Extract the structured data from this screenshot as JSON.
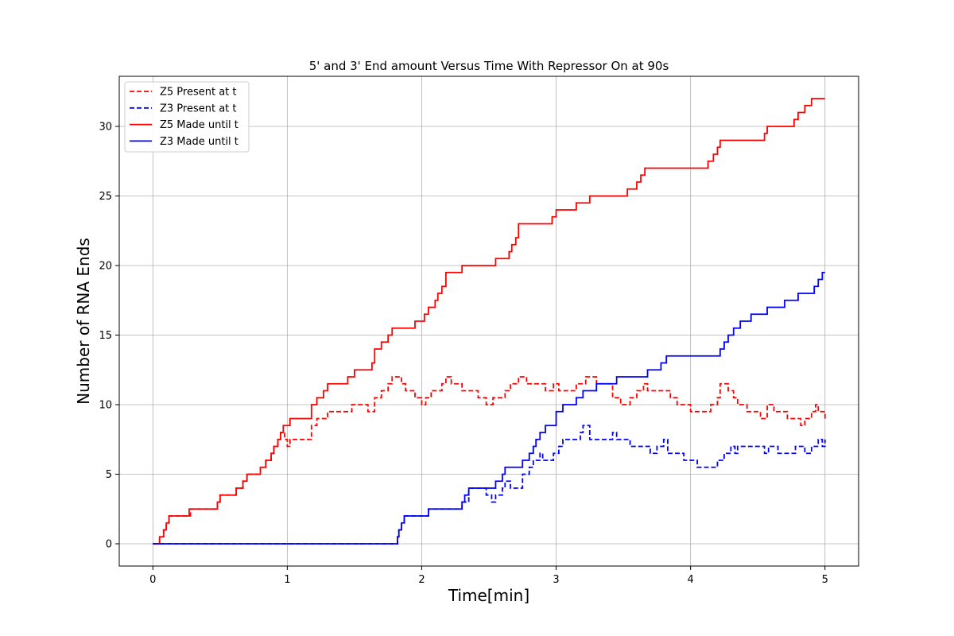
{
  "chart_data": {
    "type": "line",
    "title": "5' and 3' End amount Versus Time With Repressor On at 90s",
    "xlabel": "Time[min]",
    "ylabel": "Number of RNA Ends",
    "xlim": [
      -0.25,
      5.25
    ],
    "ylim": [
      -1.6,
      33.6
    ],
    "xticks": [
      0,
      1,
      2,
      3,
      4,
      5
    ],
    "yticks": [
      0,
      5,
      10,
      15,
      20,
      25,
      30
    ],
    "xtick_labels": [
      "0",
      "1",
      "2",
      "3",
      "4",
      "5"
    ],
    "ytick_labels": [
      "0",
      "5",
      "10",
      "15",
      "20",
      "25",
      "30"
    ],
    "grid": true,
    "legend_position": "top-left",
    "step": "post",
    "series": [
      {
        "name": "Z5 Present at t",
        "color": "#ff0000",
        "style": "dashed",
        "points": [
          [
            0,
            0
          ],
          [
            0.05,
            0.5
          ],
          [
            0.08,
            1
          ],
          [
            0.1,
            1.5
          ],
          [
            0.12,
            2
          ],
          [
            0.28,
            2.5
          ],
          [
            0.48,
            3
          ],
          [
            0.5,
            3.5
          ],
          [
            0.62,
            4
          ],
          [
            0.67,
            4.5
          ],
          [
            0.7,
            5
          ],
          [
            0.8,
            5.5
          ],
          [
            0.84,
            6
          ],
          [
            0.88,
            6.5
          ],
          [
            0.9,
            7
          ],
          [
            0.93,
            7.5
          ],
          [
            0.95,
            8
          ],
          [
            0.98,
            7.5
          ],
          [
            1.0,
            7
          ],
          [
            1.02,
            7.5
          ],
          [
            1.18,
            8.5
          ],
          [
            1.22,
            9
          ],
          [
            1.3,
            9.5
          ],
          [
            1.48,
            10
          ],
          [
            1.6,
            9.5
          ],
          [
            1.65,
            10.5
          ],
          [
            1.7,
            11
          ],
          [
            1.75,
            11.5
          ],
          [
            1.78,
            12
          ],
          [
            1.85,
            11.5
          ],
          [
            1.88,
            11
          ],
          [
            1.95,
            10.5
          ],
          [
            2.0,
            10
          ],
          [
            2.03,
            10.5
          ],
          [
            2.07,
            11
          ],
          [
            2.15,
            11.5
          ],
          [
            2.18,
            12
          ],
          [
            2.22,
            11.5
          ],
          [
            2.3,
            11
          ],
          [
            2.42,
            10.5
          ],
          [
            2.48,
            10
          ],
          [
            2.53,
            10.5
          ],
          [
            2.62,
            11
          ],
          [
            2.66,
            11.5
          ],
          [
            2.72,
            12
          ],
          [
            2.78,
            11.5
          ],
          [
            2.92,
            11
          ],
          [
            2.98,
            11.5
          ],
          [
            3.02,
            11
          ],
          [
            3.15,
            11.5
          ],
          [
            3.22,
            12
          ],
          [
            3.3,
            11.5
          ],
          [
            3.42,
            10.5
          ],
          [
            3.48,
            10
          ],
          [
            3.55,
            10.5
          ],
          [
            3.6,
            11
          ],
          [
            3.65,
            11.5
          ],
          [
            3.68,
            11
          ],
          [
            3.85,
            10.5
          ],
          [
            3.9,
            10
          ],
          [
            4.0,
            9.5
          ],
          [
            4.15,
            10
          ],
          [
            4.2,
            10.5
          ],
          [
            4.22,
            11.5
          ],
          [
            4.28,
            11
          ],
          [
            4.32,
            10.5
          ],
          [
            4.35,
            10
          ],
          [
            4.42,
            9.5
          ],
          [
            4.52,
            9
          ],
          [
            4.57,
            10
          ],
          [
            4.62,
            9.5
          ],
          [
            4.72,
            9
          ],
          [
            4.82,
            8.5
          ],
          [
            4.85,
            9
          ],
          [
            4.9,
            9.5
          ],
          [
            4.93,
            10
          ],
          [
            4.95,
            9.5
          ],
          [
            5.0,
            9
          ]
        ]
      },
      {
        "name": "Z3 Present at t",
        "color": "#0000ff",
        "style": "dashed",
        "points": [
          [
            0,
            0
          ],
          [
            1.82,
            0.5
          ],
          [
            1.83,
            1
          ],
          [
            1.85,
            1.5
          ],
          [
            1.87,
            2
          ],
          [
            2.05,
            2.5
          ],
          [
            2.3,
            3
          ],
          [
            2.35,
            4
          ],
          [
            2.48,
            3.5
          ],
          [
            2.52,
            3
          ],
          [
            2.55,
            3.5
          ],
          [
            2.6,
            4
          ],
          [
            2.62,
            4.5
          ],
          [
            2.66,
            4
          ],
          [
            2.75,
            5
          ],
          [
            2.8,
            5.5
          ],
          [
            2.83,
            6
          ],
          [
            2.88,
            6.5
          ],
          [
            2.9,
            6
          ],
          [
            2.98,
            6.5
          ],
          [
            3.02,
            7
          ],
          [
            3.05,
            7.5
          ],
          [
            3.15,
            7.5
          ],
          [
            3.18,
            8
          ],
          [
            3.2,
            8.5
          ],
          [
            3.25,
            7.5
          ],
          [
            3.42,
            8
          ],
          [
            3.45,
            7.5
          ],
          [
            3.55,
            7
          ],
          [
            3.7,
            6.5
          ],
          [
            3.75,
            7
          ],
          [
            3.8,
            7.5
          ],
          [
            3.83,
            6.5
          ],
          [
            3.95,
            6
          ],
          [
            4.05,
            5.5
          ],
          [
            4.2,
            6
          ],
          [
            4.25,
            6.5
          ],
          [
            4.3,
            7
          ],
          [
            4.33,
            6.5
          ],
          [
            4.35,
            7
          ],
          [
            4.55,
            6.5
          ],
          [
            4.58,
            7
          ],
          [
            4.65,
            6.5
          ],
          [
            4.78,
            7
          ],
          [
            4.85,
            6.5
          ],
          [
            4.9,
            7
          ],
          [
            4.95,
            7.5
          ],
          [
            4.98,
            7
          ],
          [
            5.0,
            7.5
          ]
        ]
      },
      {
        "name": "Z5 Made until t",
        "color": "#ff0000",
        "style": "solid",
        "points": [
          [
            0,
            0
          ],
          [
            0.05,
            0.5
          ],
          [
            0.08,
            1
          ],
          [
            0.1,
            1.5
          ],
          [
            0.12,
            2
          ],
          [
            0.27,
            2.5
          ],
          [
            0.48,
            3
          ],
          [
            0.5,
            3.5
          ],
          [
            0.62,
            4
          ],
          [
            0.67,
            4.5
          ],
          [
            0.7,
            5
          ],
          [
            0.8,
            5.5
          ],
          [
            0.84,
            6
          ],
          [
            0.88,
            6.5
          ],
          [
            0.9,
            7
          ],
          [
            0.93,
            7.5
          ],
          [
            0.95,
            8
          ],
          [
            0.97,
            8.5
          ],
          [
            1.02,
            9
          ],
          [
            1.18,
            10
          ],
          [
            1.22,
            10.5
          ],
          [
            1.27,
            11
          ],
          [
            1.3,
            11.5
          ],
          [
            1.45,
            12
          ],
          [
            1.5,
            12.5
          ],
          [
            1.63,
            13
          ],
          [
            1.65,
            14
          ],
          [
            1.7,
            14.5
          ],
          [
            1.75,
            15
          ],
          [
            1.78,
            15.5
          ],
          [
            1.95,
            16
          ],
          [
            2.02,
            16.5
          ],
          [
            2.05,
            17
          ],
          [
            2.1,
            17.5
          ],
          [
            2.12,
            18
          ],
          [
            2.15,
            18.5
          ],
          [
            2.18,
            19.5
          ],
          [
            2.3,
            20
          ],
          [
            2.55,
            20.5
          ],
          [
            2.65,
            21
          ],
          [
            2.67,
            21.5
          ],
          [
            2.7,
            22
          ],
          [
            2.72,
            23
          ],
          [
            2.97,
            23.5
          ],
          [
            3.0,
            24
          ],
          [
            3.15,
            24.5
          ],
          [
            3.25,
            25
          ],
          [
            3.53,
            25.5
          ],
          [
            3.6,
            26
          ],
          [
            3.63,
            26.5
          ],
          [
            3.66,
            27
          ],
          [
            4.13,
            27.5
          ],
          [
            4.17,
            28
          ],
          [
            4.2,
            28.5
          ],
          [
            4.22,
            29
          ],
          [
            4.55,
            29.5
          ],
          [
            4.57,
            30
          ],
          [
            4.77,
            30.5
          ],
          [
            4.8,
            31
          ],
          [
            4.85,
            31.5
          ],
          [
            4.9,
            32
          ],
          [
            5.0,
            32
          ]
        ]
      },
      {
        "name": "Z3 Made until t",
        "color": "#0000ff",
        "style": "solid",
        "points": [
          [
            0,
            0
          ],
          [
            1.82,
            0.5
          ],
          [
            1.83,
            1
          ],
          [
            1.85,
            1.5
          ],
          [
            1.87,
            2
          ],
          [
            2.05,
            2.5
          ],
          [
            2.3,
            3
          ],
          [
            2.32,
            3.5
          ],
          [
            2.35,
            4
          ],
          [
            2.55,
            4.5
          ],
          [
            2.6,
            5
          ],
          [
            2.62,
            5.5
          ],
          [
            2.75,
            6
          ],
          [
            2.8,
            6.5
          ],
          [
            2.83,
            7
          ],
          [
            2.85,
            7.5
          ],
          [
            2.88,
            8
          ],
          [
            2.92,
            8.5
          ],
          [
            3.0,
            9.5
          ],
          [
            3.05,
            10
          ],
          [
            3.15,
            10.5
          ],
          [
            3.2,
            11
          ],
          [
            3.3,
            11.5
          ],
          [
            3.45,
            12
          ],
          [
            3.68,
            12.5
          ],
          [
            3.78,
            13
          ],
          [
            3.82,
            13.5
          ],
          [
            4.22,
            14
          ],
          [
            4.25,
            14.5
          ],
          [
            4.28,
            15
          ],
          [
            4.32,
            15.5
          ],
          [
            4.37,
            16
          ],
          [
            4.45,
            16.5
          ],
          [
            4.57,
            17
          ],
          [
            4.7,
            17.5
          ],
          [
            4.8,
            18
          ],
          [
            4.92,
            18.5
          ],
          [
            4.95,
            19
          ],
          [
            4.98,
            19.5
          ],
          [
            5.0,
            19.5
          ]
        ]
      }
    ]
  }
}
